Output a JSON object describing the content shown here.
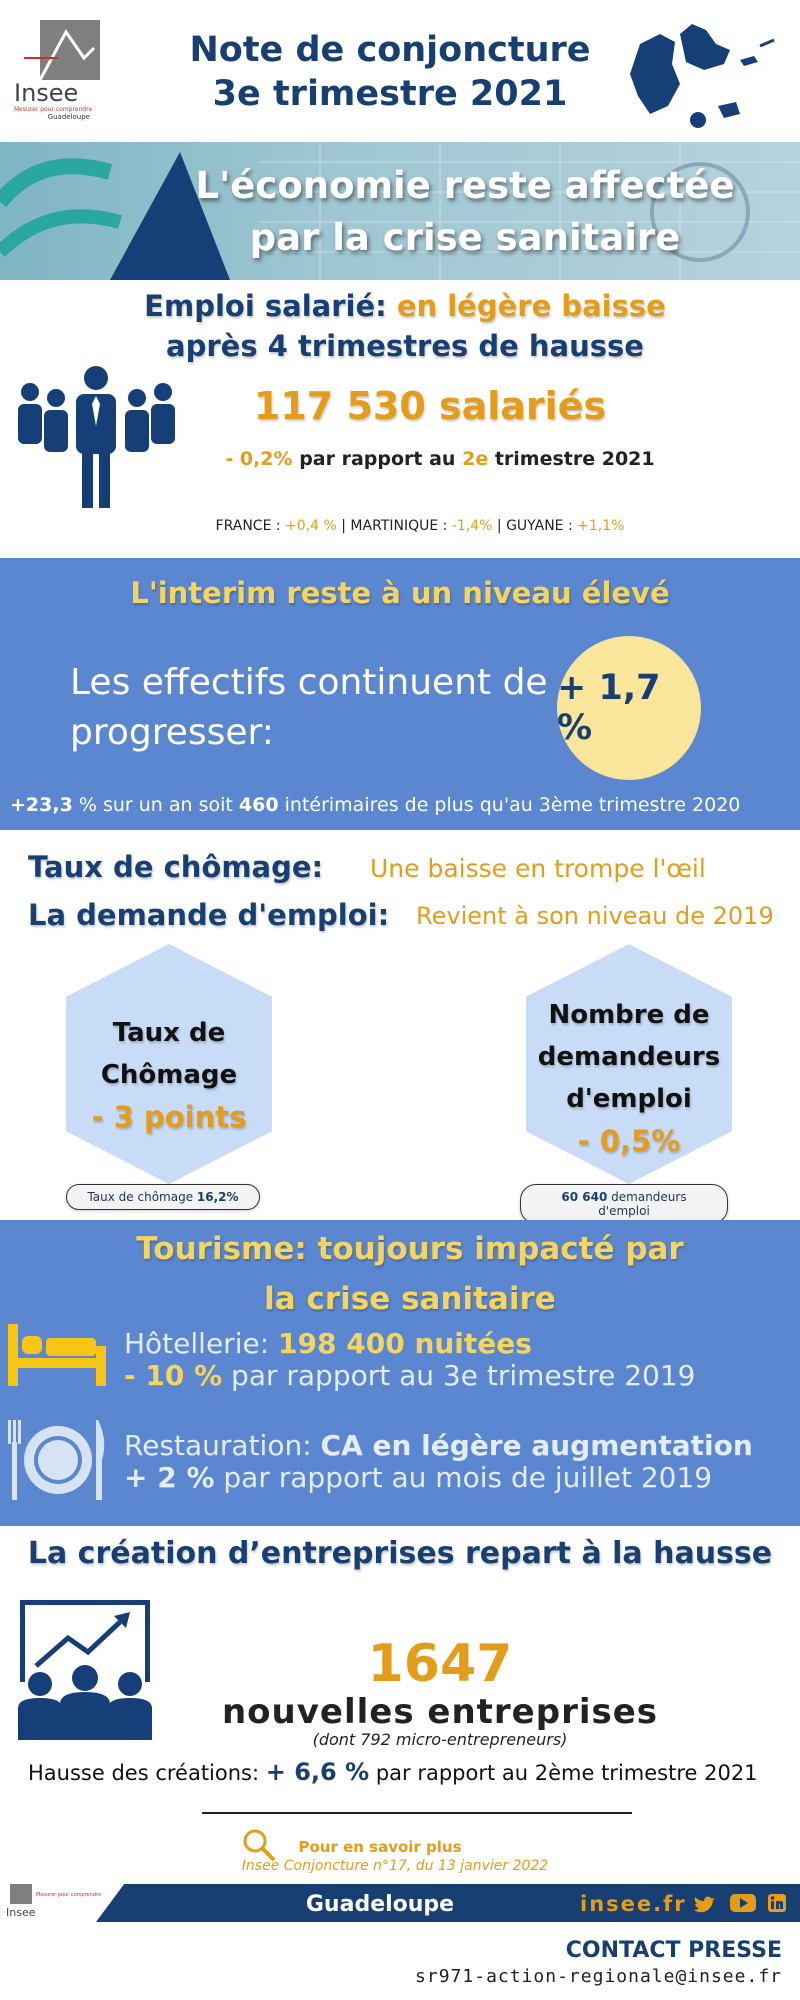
{
  "header": {
    "logo_word": "Insee",
    "logo_tagline": "Mesurer pour comprendre",
    "logo_region": "Guadeloupe",
    "title_line1": "Note de conjoncture",
    "title_line2": "3e trimestre 2021"
  },
  "banner": {
    "line1": "L'économie reste affectée",
    "line2": "par la crise sanitaire"
  },
  "emploi": {
    "title_a": "Emploi salarié:",
    "title_b": "en légère baisse",
    "title_line2": "après 4 trimestres de hausse",
    "big": "117 530 salariés",
    "var_val": "- 0,2%",
    "var_mid": "par rapport au",
    "var_q": "2e",
    "var_end": "trimestre 2021",
    "cmp": [
      {
        "label": "FRANCE :",
        "value": "+0,4 %"
      },
      {
        "label": "MARTINIQUE :",
        "value": "-1,4%"
      },
      {
        "label": "GUYANE :",
        "value": "+1,1%"
      }
    ]
  },
  "interim": {
    "title": "L'interim reste à un niveau élevé",
    "text_line1": "Les effectifs continuent de",
    "text_line2": "progresser:",
    "badge": "+ 1,7 %",
    "foot_a": "+23,3",
    "foot_b": "% sur un an soit",
    "foot_c": "460",
    "foot_d": "intérimaires de plus qu'au 3ème trimestre 2020"
  },
  "chomage": {
    "row1_label": "Taux de chômage:",
    "row1_value": "Une baisse en trompe l'œil",
    "row2_label": "La demande d'emploi:",
    "row2_value": "Revient à son niveau de 2019",
    "hex1_l1": "Taux de",
    "hex1_l2": "Chômage",
    "hex1_val": "- 3 points",
    "hex2_l1": "Nombre de",
    "hex2_l2": "demandeurs",
    "hex2_l3": "d'emploi",
    "hex2_val": "- 0,5%",
    "pill1_a": "Taux de chômage",
    "pill1_b": "16,2%",
    "pill2_a": "60 640",
    "pill2_b": "demandeurs d'emploi"
  },
  "tourisme": {
    "title_line1": "Tourisme: toujours impacté par",
    "title_line2": "la crise sanitaire",
    "hotel_label": "Hôtellerie:",
    "hotel_value": "198 400 nuitées",
    "hotel_var": "- 10 %",
    "hotel_rest": "par rapport au 3e trimestre  2019",
    "resto_label": "Restauration:",
    "resto_value": "CA en légère augmentation",
    "resto_var": "+ 2 %",
    "resto_rest": "par rapport au mois de juillet 2019"
  },
  "entreprises": {
    "title": "La création d’entreprises  repart à la hausse",
    "big": "1647",
    "sub": "nouvelles entreprises",
    "note": "(dont 792 micro-entrepreneurs)",
    "hausse_a": "Hausse des créations:",
    "hausse_b": "+ 6,6 %",
    "hausse_c": "par rapport au 2ème trimestre 2021"
  },
  "more": {
    "line1": "Pour en savoir plus",
    "line2": "Insee Conjoncture n°17, du 13 janvier 2022"
  },
  "footer": {
    "logo_word": "Insee",
    "logo_tagline": "Mesurer pour comprendre",
    "region": "Guadeloupe",
    "site": "insee.fr",
    "contact_title": "CONTACT PRESSE",
    "email": "sr971-action-regionale@insee.fr"
  },
  "colors": {
    "navy": "#173f72",
    "orange": "#e39d1a",
    "yellow": "#f6d55e",
    "blue_section": "#5b87d1",
    "light_hex": "#c8dcf8"
  }
}
